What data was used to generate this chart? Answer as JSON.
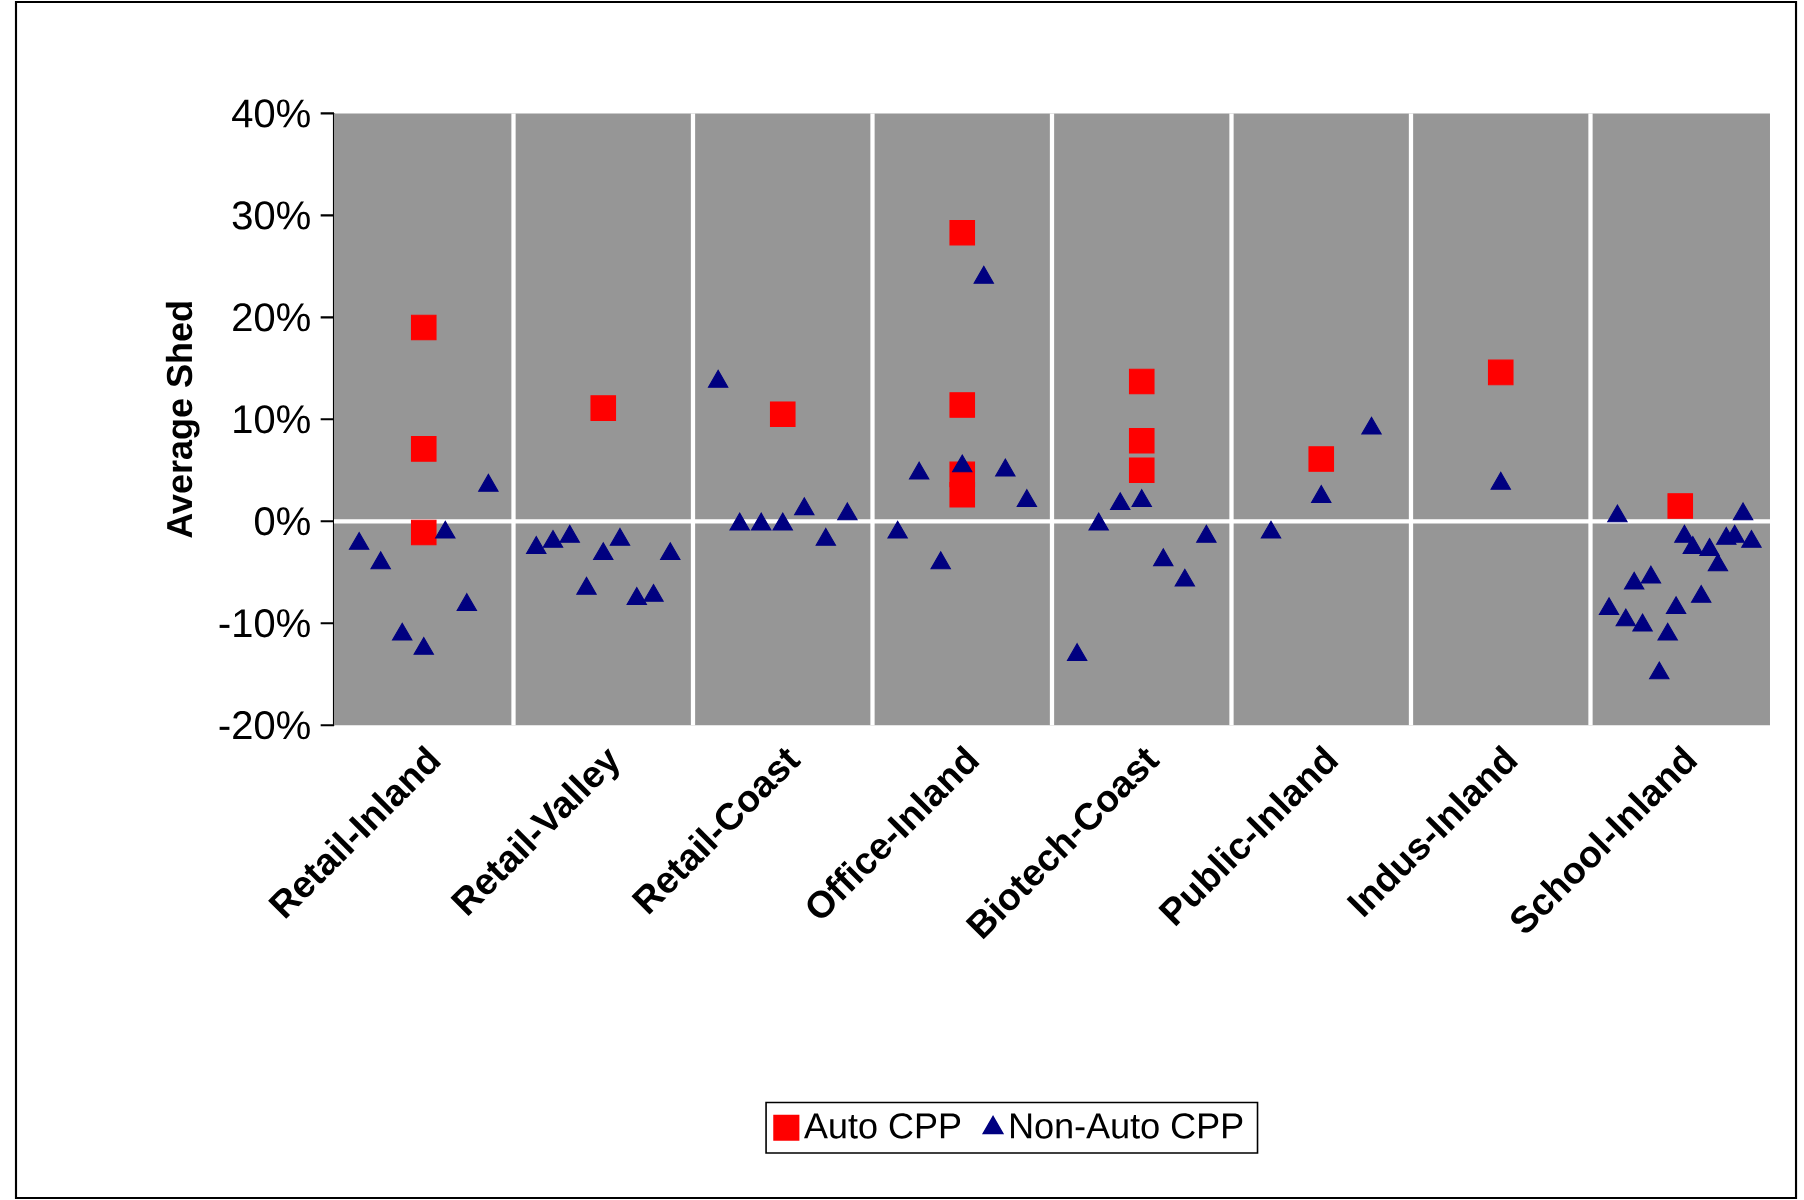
{
  "chart_data": {
    "type": "scatter",
    "ylabel": "Average Shed",
    "categories": [
      "Retail-Inland",
      "Retail-Valley",
      "Retail-Coast",
      "Office-Inland",
      "Biotech-Coast",
      "Public-Inland",
      "Indus-Inland",
      "School-Inland"
    ],
    "ylim": [
      -20,
      40
    ],
    "yticks": [
      {
        "value": -20,
        "label": "-20%"
      },
      {
        "value": -10,
        "label": "-10%"
      },
      {
        "value": 0,
        "label": "0%"
      },
      {
        "value": 10,
        "label": "10%"
      },
      {
        "value": 20,
        "label": "20%"
      },
      {
        "value": 30,
        "label": "30%"
      },
      {
        "value": 40,
        "label": "40%"
      }
    ],
    "ref_lines": [
      {
        "axis": "y",
        "value": 0,
        "color": "#ffffff"
      }
    ],
    "legend": "bottom",
    "series": [
      {
        "name": "Auto CPP",
        "color": "#ff0000",
        "marker": "square",
        "x": [
          "Retail-Inland",
          "Retail-Inland",
          "Retail-Inland",
          "Retail-Valley",
          "Retail-Coast",
          "Office-Inland",
          "Office-Inland",
          "Office-Inland",
          "Office-Inland",
          "Biotech-Coast",
          "Biotech-Coast",
          "Biotech-Coast",
          "Public-Inland",
          "Indus-Inland",
          "School-Inland"
        ],
        "values": [
          19.0,
          7.1,
          -1.1,
          11.1,
          10.5,
          28.3,
          11.4,
          4.6,
          2.6,
          13.7,
          7.9,
          5.0,
          6.1,
          14.6,
          1.5
        ]
      },
      {
        "name": "Non-Auto CPP",
        "color": "#000080",
        "marker": "triangle",
        "x": [
          "Retail-Inland",
          "Retail-Inland",
          "Retail-Inland",
          "Retail-Inland",
          "Retail-Inland",
          "Retail-Inland",
          "Retail-Inland",
          "Retail-Valley",
          "Retail-Valley",
          "Retail-Valley",
          "Retail-Valley",
          "Retail-Valley",
          "Retail-Valley",
          "Retail-Valley",
          "Retail-Valley",
          "Retail-Valley",
          "Retail-Coast",
          "Retail-Coast",
          "Retail-Coast",
          "Retail-Coast",
          "Retail-Coast",
          "Retail-Coast",
          "Retail-Coast",
          "Office-Inland",
          "Office-Inland",
          "Office-Inland",
          "Office-Inland",
          "Office-Inland",
          "Office-Inland",
          "Office-Inland",
          "Biotech-Coast",
          "Biotech-Coast",
          "Biotech-Coast",
          "Biotech-Coast",
          "Biotech-Coast",
          "Biotech-Coast",
          "Biotech-Coast",
          "Public-Inland",
          "Public-Inland",
          "Public-Inland",
          "Indus-Inland",
          "School-Inland",
          "School-Inland",
          "School-Inland",
          "School-Inland",
          "School-Inland",
          "School-Inland",
          "School-Inland",
          "School-Inland",
          "School-Inland",
          "School-Inland",
          "School-Inland",
          "School-Inland",
          "School-Inland",
          "School-Inland",
          "School-Inland",
          "School-Inland",
          "School-Inland",
          "School-Inland"
        ],
        "values": [
          -2.2,
          -4.1,
          -11.1,
          -12.5,
          -1.1,
          -8.2,
          3.5,
          -2.6,
          -2.0,
          -1.5,
          -6.6,
          -3.2,
          -1.8,
          -7.6,
          -7.3,
          -3.2,
          13.7,
          -0.3,
          -0.3,
          -0.3,
          1.2,
          -1.8,
          0.7,
          -1.1,
          4.7,
          -4.1,
          5.4,
          23.9,
          5.0,
          2.0,
          -13.1,
          -0.3,
          1.7,
          2.0,
          -3.8,
          -5.8,
          -1.5,
          -1.1,
          2.4,
          9.1,
          3.7,
          -8.6,
          0.5,
          -9.7,
          -6.1,
          -10.2,
          -5.5,
          -14.9,
          -11.1,
          -8.5,
          -1.5,
          -2.6,
          -7.4,
          -2.8,
          -4.3,
          -1.7,
          -1.5,
          0.7,
          -2.0
        ]
      }
    ]
  }
}
